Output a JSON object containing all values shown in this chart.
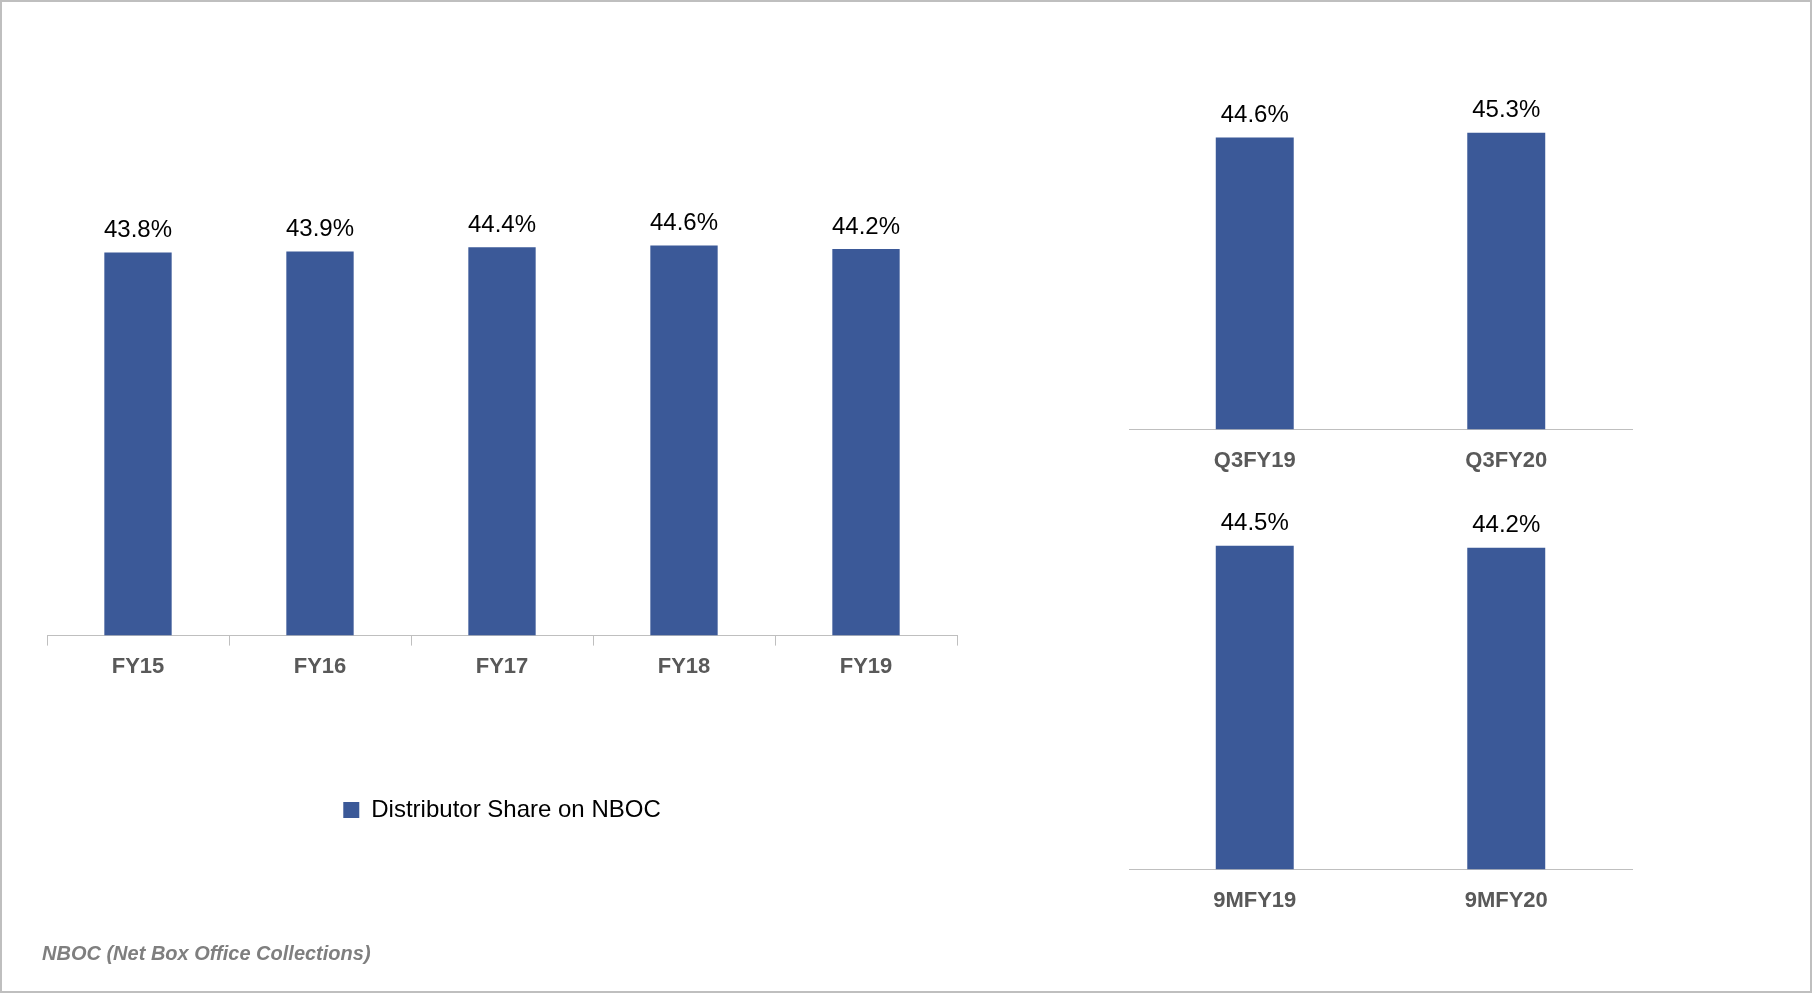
{
  "chart_data": [
    {
      "type": "bar",
      "categories": [
        "FY15",
        "FY16",
        "FY17",
        "FY18",
        "FY19"
      ],
      "series": [
        {
          "name": "Distributor Share on NBOC",
          "color": "#3b5998",
          "values": [
            43.8,
            43.9,
            44.4,
            44.6,
            44.2
          ],
          "value_labels": [
            "43.8%",
            "43.9%",
            "44.4%",
            "44.6%",
            "44.2%"
          ]
        }
      ],
      "legend": "bottom",
      "annotations": [
        "NBOC (Net Box Office Collections)"
      ]
    },
    {
      "type": "bar",
      "categories": [
        "Q3FY19",
        "Q3FY20"
      ],
      "series": [
        {
          "color": "#3b5998",
          "values": [
            44.6,
            45.3
          ],
          "value_labels": [
            "44.6%",
            "45.3%"
          ]
        }
      ]
    },
    {
      "type": "bar",
      "categories": [
        "9MFY19",
        "9MFY20"
      ],
      "series": [
        {
          "color": "#3b5998",
          "values": [
            44.5,
            44.2
          ],
          "value_labels": [
            "44.5%",
            "44.2%"
          ]
        }
      ]
    }
  ]
}
